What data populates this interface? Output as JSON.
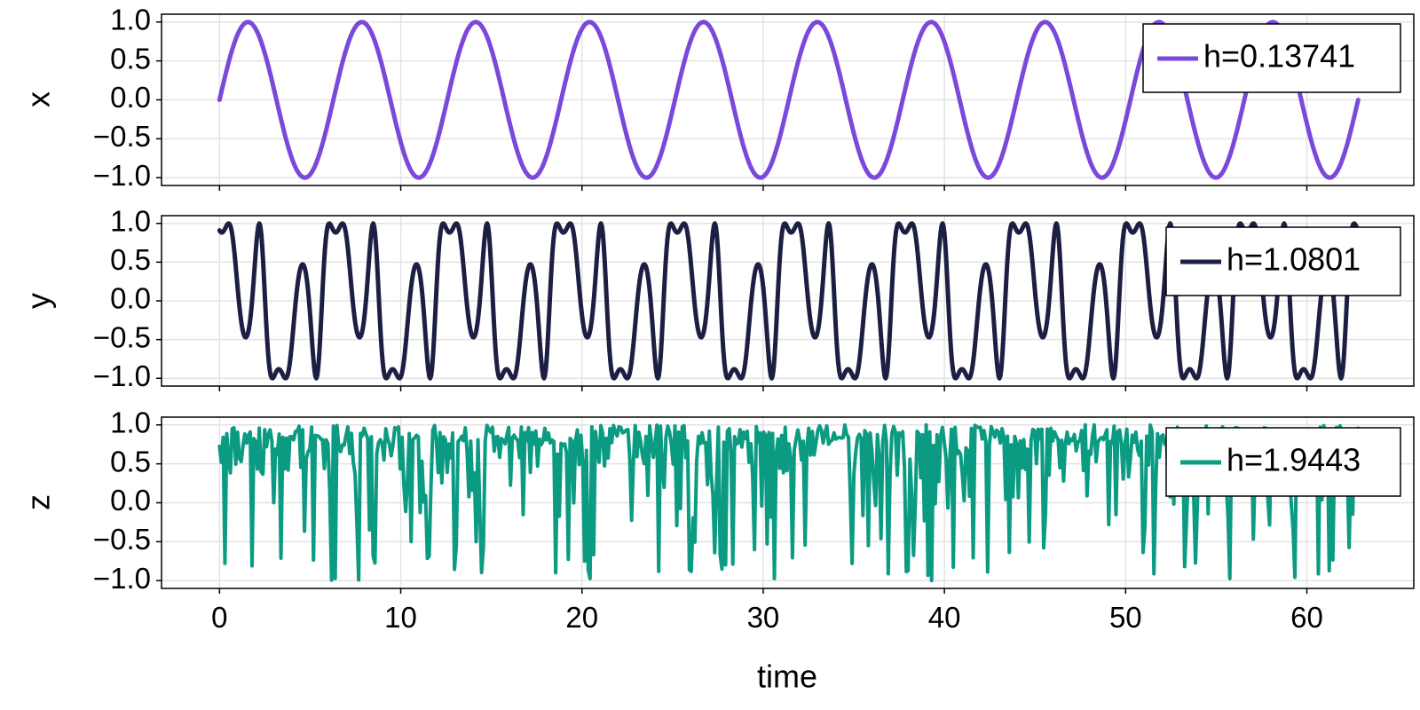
{
  "chart_data": [
    {
      "type": "line",
      "panel": "x",
      "ylabel": "x",
      "xlabel": "",
      "xlim": [
        -3.2,
        65.9
      ],
      "ylim": [
        -1.1,
        1.1
      ],
      "xticks": [
        0,
        10,
        20,
        30,
        40,
        50,
        60
      ],
      "yticks": [
        1.0,
        0.5,
        0.0,
        -0.5,
        -1.0
      ],
      "ytick_labels": [
        "1.0",
        "0.5",
        "0.0",
        "−0.5",
        "−1.0"
      ],
      "series": [
        {
          "name": "h=0.13741",
          "color": "#7a49dc",
          "x_range": [
            0,
            62.83
          ],
          "points": 600,
          "function": "sin(t)"
        }
      ],
      "legend": {
        "entries": [
          "h=0.13741"
        ],
        "position": "top-right"
      }
    },
    {
      "type": "line",
      "panel": "y",
      "ylabel": "y",
      "xlabel": "",
      "xlim": [
        -3.2,
        65.9
      ],
      "ylim": [
        -1.1,
        1.1
      ],
      "xticks": [
        0,
        10,
        20,
        30,
        40,
        50,
        60
      ],
      "yticks": [
        1.0,
        0.5,
        0.0,
        -0.5,
        -1.0
      ],
      "ytick_labels": [
        "1.0",
        "0.5",
        "0.0",
        "−0.5",
        "−1.0"
      ],
      "series": [
        {
          "name": "h=1.0801",
          "color": "#1c1f43",
          "x_range": [
            0,
            62.83
          ],
          "points": 1200,
          "function": "sin(t + 2cos(2t))"
        }
      ],
      "legend": {
        "entries": [
          "h=1.0801"
        ],
        "position": "top-right"
      }
    },
    {
      "type": "line",
      "panel": "z",
      "ylabel": "z",
      "xlabel": "time",
      "xlim": [
        -3.2,
        65.9
      ],
      "ylim": [
        -1.1,
        1.1
      ],
      "xticks": [
        0,
        10,
        20,
        30,
        40,
        50,
        60
      ],
      "xtick_labels": [
        "0",
        "10",
        "20",
        "30",
        "40",
        "50",
        "60"
      ],
      "yticks": [
        1.0,
        0.5,
        0.0,
        -0.5,
        -1.0
      ],
      "ytick_labels": [
        "1.0",
        "0.5",
        "0.0",
        "−0.5",
        "−1.0"
      ],
      "series": [
        {
          "name": "h=1.9443",
          "color": "#0b9a82",
          "x_range": [
            0,
            62.83
          ],
          "points": 630,
          "function": "noisy chaotic signal in [-1, 1]"
        }
      ],
      "legend": {
        "entries": [
          "h=1.9443"
        ],
        "position": "top-right"
      }
    }
  ]
}
